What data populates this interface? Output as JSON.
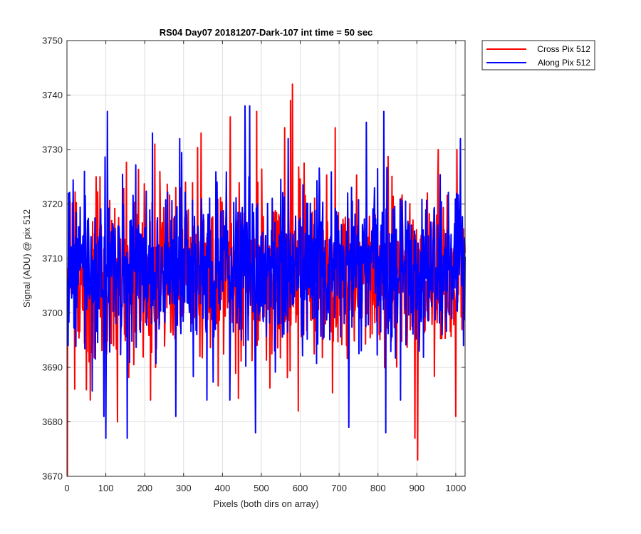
{
  "chart_data": {
    "type": "line",
    "title": "RS04 Day07 20181207-Dark-107 int time = 50 sec",
    "xlabel": "Pixels (both dirs on array)",
    "ylabel": "Signal (ADU) @ pix 512",
    "xlim": [
      0,
      1024
    ],
    "ylim": [
      3670,
      3750
    ],
    "xticks": [
      0,
      100,
      200,
      300,
      400,
      500,
      600,
      700,
      800,
      900,
      1000
    ],
    "yticks": [
      3670,
      3680,
      3690,
      3700,
      3710,
      3720,
      3730,
      3740,
      3750
    ],
    "grid": true,
    "legend_position": "outside-top-right",
    "series": [
      {
        "name": "Cross Pix 512",
        "color": "#ff0000",
        "x_start": 1,
        "x_step": 1,
        "mean": 3707,
        "noise_sd": 7.5,
        "anchors": [
          {
            "x": 1,
            "y": 3670
          },
          {
            "x": 20,
            "y": 3686
          },
          {
            "x": 60,
            "y": 3684
          },
          {
            "x": 75,
            "y": 3725
          },
          {
            "x": 85,
            "y": 3725
          },
          {
            "x": 130,
            "y": 3680
          },
          {
            "x": 215,
            "y": 3684
          },
          {
            "x": 226,
            "y": 3731
          },
          {
            "x": 280,
            "y": 3723
          },
          {
            "x": 305,
            "y": 3724
          },
          {
            "x": 345,
            "y": 3733
          },
          {
            "x": 420,
            "y": 3736
          },
          {
            "x": 488,
            "y": 3737
          },
          {
            "x": 560,
            "y": 3734
          },
          {
            "x": 575,
            "y": 3739
          },
          {
            "x": 580,
            "y": 3742
          },
          {
            "x": 595,
            "y": 3682
          },
          {
            "x": 690,
            "y": 3734
          },
          {
            "x": 895,
            "y": 3677
          },
          {
            "x": 902,
            "y": 3673
          },
          {
            "x": 955,
            "y": 3730
          },
          {
            "x": 1000,
            "y": 3681
          },
          {
            "x": 1003,
            "y": 3730
          }
        ]
      },
      {
        "name": "Along Pix 512",
        "color": "#0000ff",
        "x_start": 1,
        "x_step": 1,
        "mean": 3708,
        "noise_sd": 7.5,
        "anchors": [
          {
            "x": 3,
            "y": 3694
          },
          {
            "x": 45,
            "y": 3726
          },
          {
            "x": 95,
            "y": 3681
          },
          {
            "x": 100,
            "y": 3677
          },
          {
            "x": 104,
            "y": 3737
          },
          {
            "x": 155,
            "y": 3677
          },
          {
            "x": 220,
            "y": 3733
          },
          {
            "x": 280,
            "y": 3681
          },
          {
            "x": 290,
            "y": 3732
          },
          {
            "x": 360,
            "y": 3684
          },
          {
            "x": 458,
            "y": 3738
          },
          {
            "x": 470,
            "y": 3738
          },
          {
            "x": 485,
            "y": 3678
          },
          {
            "x": 725,
            "y": 3679
          },
          {
            "x": 770,
            "y": 3735
          },
          {
            "x": 815,
            "y": 3737
          },
          {
            "x": 820,
            "y": 3678
          },
          {
            "x": 1020,
            "y": 3694
          }
        ]
      }
    ]
  }
}
